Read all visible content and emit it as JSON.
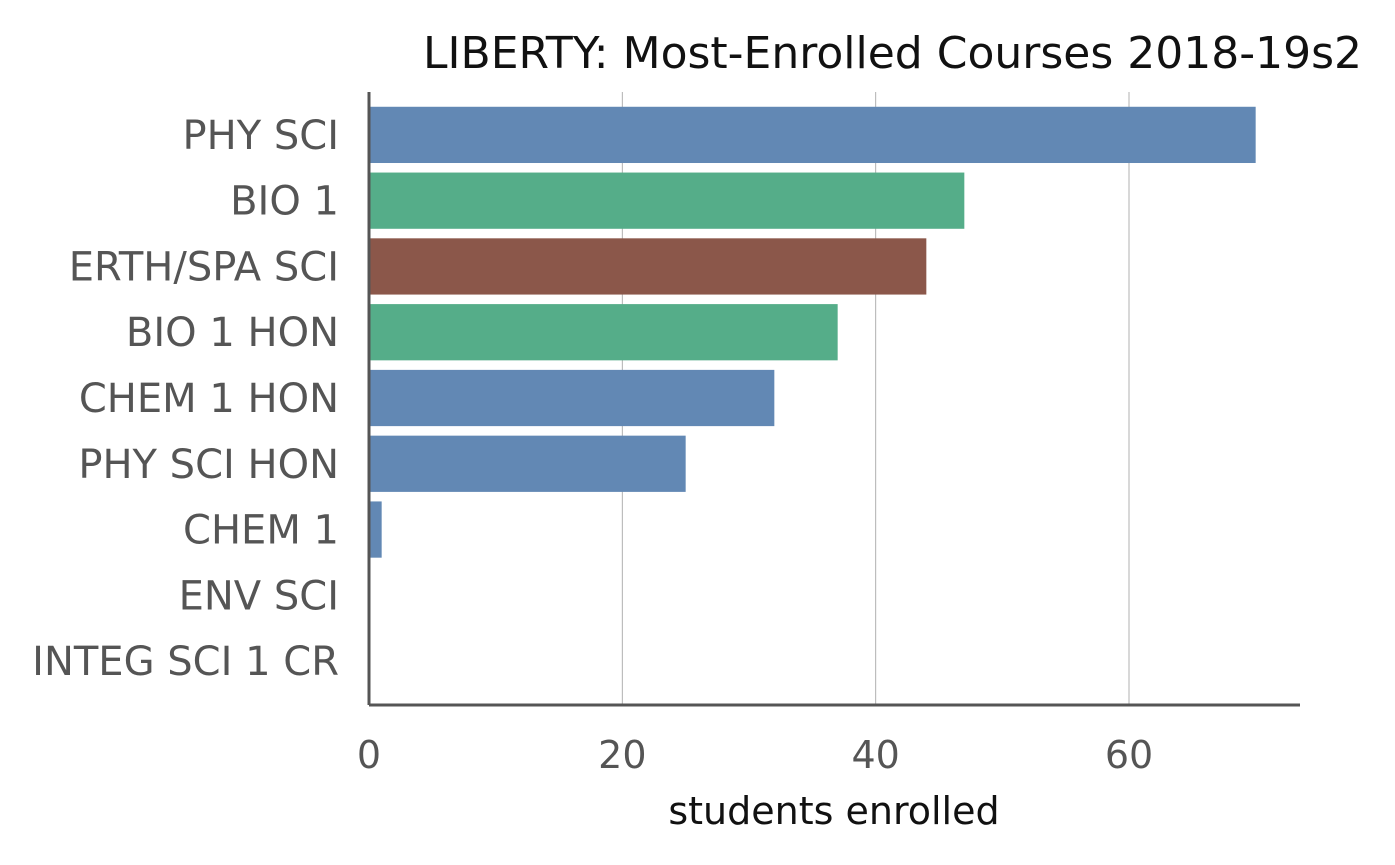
{
  "chart_data": {
    "type": "bar",
    "orientation": "horizontal",
    "title": "LIBERTY: Most-Enrolled Courses 2018-19s2",
    "xlabel": "students enrolled",
    "ylabel": "",
    "categories": [
      "PHY SCI",
      "BIO 1",
      "ERTH/SPA SCI",
      "BIO 1 HON",
      "CHEM 1 HON",
      "PHY SCI HON",
      "CHEM 1",
      "ENV SCI",
      "INTEG SCI 1 CR"
    ],
    "values": [
      70,
      47,
      44,
      37,
      32,
      25,
      1,
      0,
      0
    ],
    "bar_colors": [
      "#6288b4",
      "#55ad89",
      "#8b574a",
      "#55ad89",
      "#6288b4",
      "#6288b4",
      "#6288b4",
      "#6288b4",
      "#6288b4"
    ],
    "xlim": [
      0,
      73.5
    ],
    "xticks": [
      0,
      20,
      40,
      60
    ],
    "xtick_labels": [
      "0",
      "20",
      "40",
      "60"
    ],
    "grid": "vertical"
  }
}
